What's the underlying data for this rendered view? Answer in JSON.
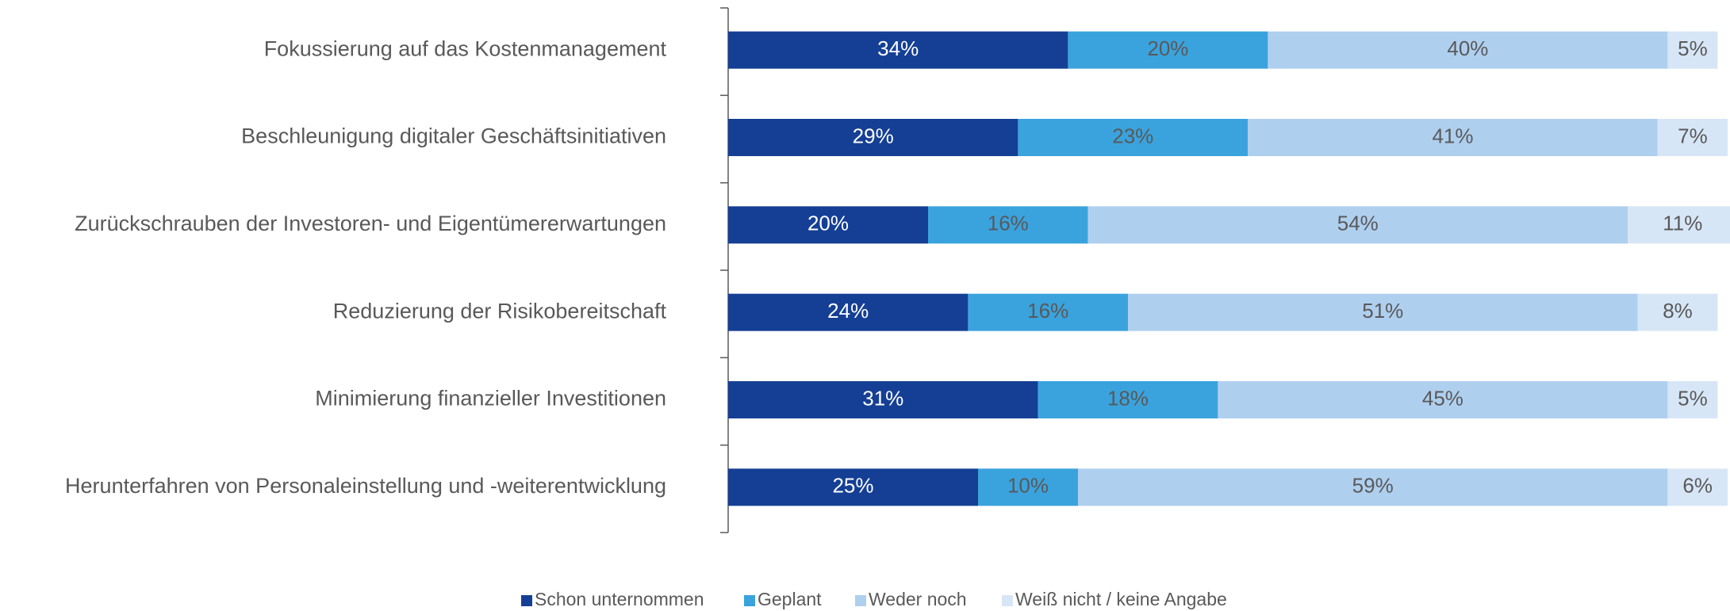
{
  "chart_data": {
    "type": "stacked-bar-horizontal",
    "categories": [
      "Fokussierung auf das Kostenmanagement",
      "Beschleunigung digitaler Geschäftsinitiativen",
      "Zurückschrauben der Investoren- und Eigentümererwartungen",
      "Reduzierung der Risikobereitschaft",
      "Minimierung finanzieller Investitionen",
      "Herunterfahren von Personaleinstellung und -weiterentwicklung"
    ],
    "series": [
      {
        "name": "Schon unternommen",
        "color": "#153f95",
        "values": [
          34,
          29,
          20,
          24,
          31,
          25
        ],
        "value_labels": [
          "34%",
          "29%",
          "20%",
          "24%",
          "31%",
          "25%"
        ]
      },
      {
        "name": "Geplant",
        "color": "#3aa3dd",
        "values": [
          20,
          23,
          16,
          16,
          18,
          10
        ],
        "value_labels": [
          "20%",
          "23%",
          "16%",
          "16%",
          "18%",
          "10%"
        ]
      },
      {
        "name": "Weder noch",
        "color": "#afcfef",
        "values": [
          40,
          41,
          54,
          51,
          45,
          59
        ],
        "value_labels": [
          "40%",
          "41%",
          "54%",
          "51%",
          "45%",
          "59%"
        ]
      },
      {
        "name": "Weiß nicht / keine Angabe",
        "color": "#d7e6f6",
        "values": [
          5,
          7,
          11,
          8,
          5,
          6
        ],
        "value_labels": [
          "5%",
          "7%",
          "11%",
          "8%",
          "5%",
          "6%"
        ]
      }
    ],
    "xlim": [
      0,
      100
    ],
    "legend": "bottom"
  }
}
